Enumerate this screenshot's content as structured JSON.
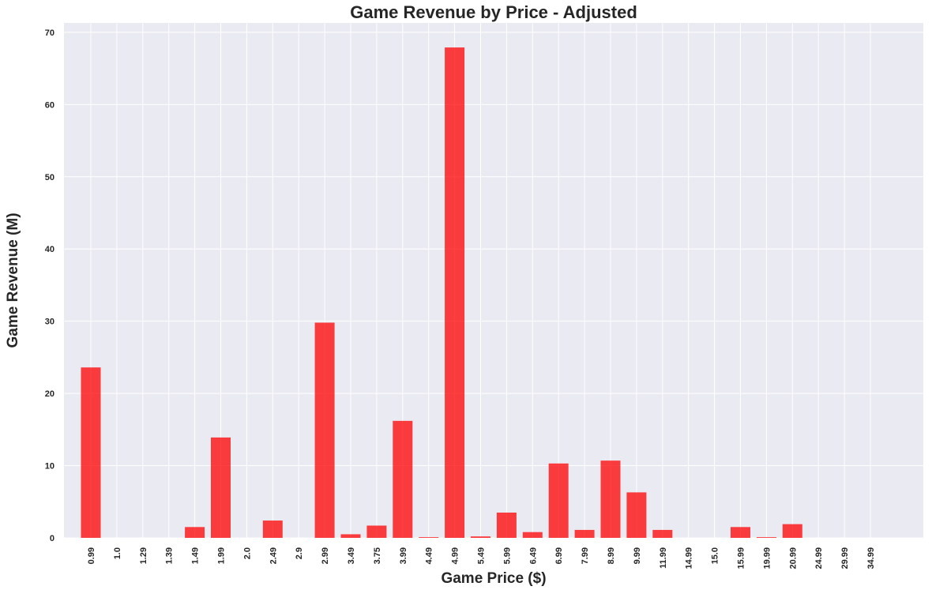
{
  "chart_data": {
    "type": "bar",
    "title": "Game Revenue by Price - Adjusted",
    "xlabel": "Game Price ($)",
    "ylabel": "Game Revenue (M)",
    "categories": [
      "0.99",
      "1.0",
      "1.29",
      "1.39",
      "1.49",
      "1.99",
      "2.0",
      "2.49",
      "2.9",
      "2.99",
      "3.49",
      "3.75",
      "3.99",
      "4.49",
      "4.99",
      "5.49",
      "5.99",
      "6.49",
      "6.99",
      "7.99",
      "8.99",
      "9.99",
      "11.99",
      "14.99",
      "15.0",
      "15.99",
      "19.99",
      "20.99",
      "24.99",
      "29.99",
      "34.99"
    ],
    "values": [
      23.6,
      0.0,
      0.0,
      0.0,
      1.5,
      13.9,
      0.0,
      2.4,
      0.0,
      29.8,
      0.5,
      1.7,
      16.2,
      0.1,
      67.9,
      0.2,
      3.5,
      0.8,
      10.3,
      1.1,
      10.7,
      6.3,
      1.1,
      0.0,
      0.0,
      1.5,
      0.1,
      1.9,
      0.0,
      0.0,
      0.0
    ],
    "yticks": [
      0,
      10,
      20,
      30,
      40,
      50,
      60,
      70
    ],
    "ylim": [
      0,
      71.3
    ],
    "grid": true,
    "colors": {
      "bar": "#ff0000",
      "bar_opacity": 0.75,
      "plot_background": "#eaeaf2",
      "grid": "#ffffff",
      "text": "#262626"
    }
  }
}
